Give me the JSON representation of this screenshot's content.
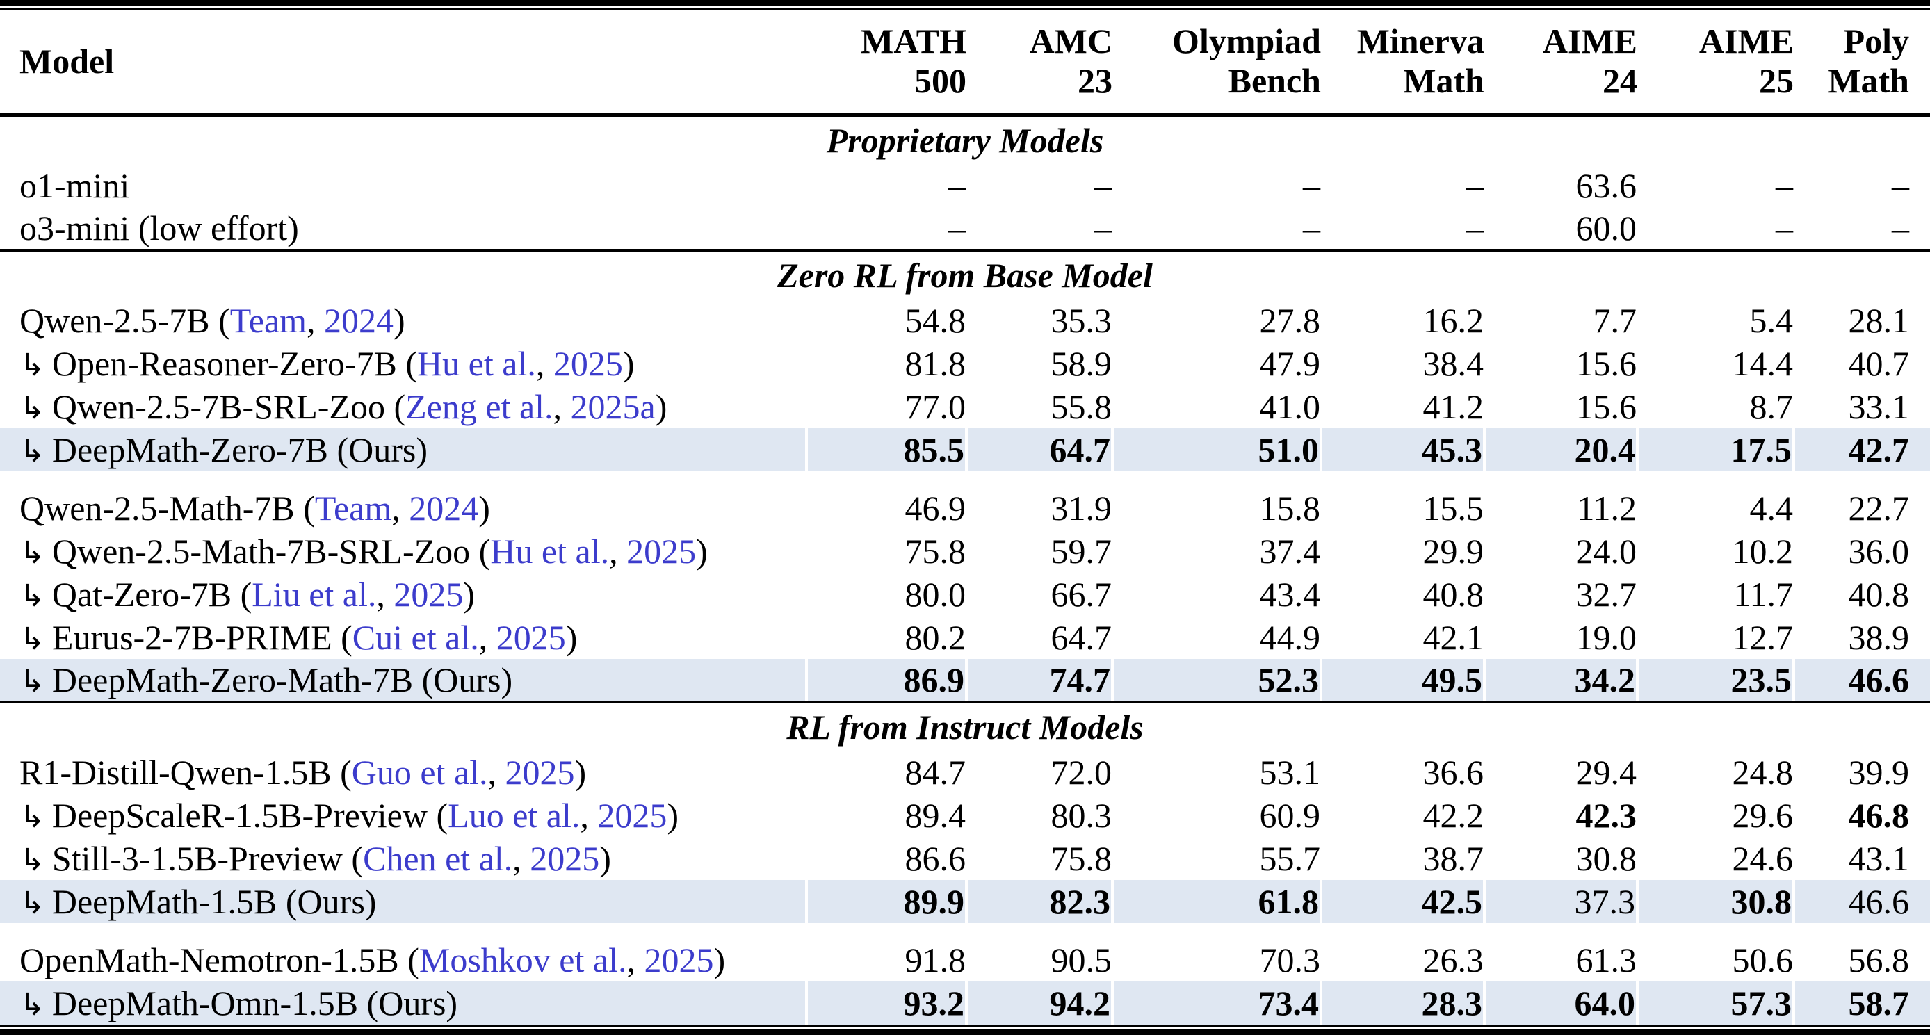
{
  "colors": {
    "highlight_row_bg": "#dfe7f2",
    "citation_link": "#3c3ccc"
  },
  "table": {
    "indent_arrow": "↳",
    "columns": [
      {
        "title": "Model"
      },
      {
        "line1": "MATH",
        "line2": "500"
      },
      {
        "line1": "AMC",
        "line2": "23"
      },
      {
        "line1": "Olympiad",
        "line2": "Bench"
      },
      {
        "line1": "Minerva",
        "line2": "Math"
      },
      {
        "line1": "AIME",
        "line2": "24"
      },
      {
        "line1": "AIME",
        "line2": "25"
      },
      {
        "line1": "Poly",
        "line2": "Math"
      }
    ],
    "sections": [
      {
        "title": "Proprietary Models",
        "groups": [
          {
            "rows": [
              {
                "arrow": false,
                "name": "o1-mini",
                "cite": null,
                "highlight": false,
                "values": [
                  "–",
                  "–",
                  "–",
                  "–",
                  "63.6",
                  "–",
                  "–"
                ],
                "bold": [
                  0,
                  0,
                  0,
                  0,
                  0,
                  0,
                  0
                ]
              },
              {
                "arrow": false,
                "name": "o3-mini (low effort)",
                "cite": null,
                "highlight": false,
                "values": [
                  "–",
                  "–",
                  "–",
                  "–",
                  "60.0",
                  "–",
                  "–"
                ],
                "bold": [
                  0,
                  0,
                  0,
                  0,
                  0,
                  0,
                  0
                ]
              }
            ]
          }
        ]
      },
      {
        "title": "Zero RL from Base Model",
        "groups": [
          {
            "rows": [
              {
                "arrow": false,
                "name": "Qwen-2.5-7B",
                "cite": {
                  "authors": "Team",
                  "year": "2024"
                },
                "highlight": false,
                "values": [
                  "54.8",
                  "35.3",
                  "27.8",
                  "16.2",
                  "7.7",
                  "5.4",
                  "28.1"
                ],
                "bold": [
                  0,
                  0,
                  0,
                  0,
                  0,
                  0,
                  0
                ]
              },
              {
                "arrow": true,
                "name": "Open-Reasoner-Zero-7B",
                "cite": {
                  "authors": "Hu et al.",
                  "year": "2025"
                },
                "highlight": false,
                "values": [
                  "81.8",
                  "58.9",
                  "47.9",
                  "38.4",
                  "15.6",
                  "14.4",
                  "40.7"
                ],
                "bold": [
                  0,
                  0,
                  0,
                  0,
                  0,
                  0,
                  0
                ]
              },
              {
                "arrow": true,
                "name": "Qwen-2.5-7B-SRL-Zoo",
                "cite": {
                  "authors": "Zeng et al.",
                  "year": "2025a"
                },
                "highlight": false,
                "values": [
                  "77.0",
                  "55.8",
                  "41.0",
                  "41.2",
                  "15.6",
                  "8.7",
                  "33.1"
                ],
                "bold": [
                  0,
                  0,
                  0,
                  0,
                  0,
                  0,
                  0
                ]
              },
              {
                "arrow": true,
                "name": "DeepMath-Zero-7B (Ours)",
                "cite": null,
                "highlight": true,
                "values": [
                  "85.5",
                  "64.7",
                  "51.0",
                  "45.3",
                  "20.4",
                  "17.5",
                  "42.7"
                ],
                "bold": [
                  1,
                  1,
                  1,
                  1,
                  1,
                  1,
                  1
                ]
              }
            ]
          },
          {
            "rows": [
              {
                "arrow": false,
                "name": "Qwen-2.5-Math-7B",
                "cite": {
                  "authors": "Team",
                  "year": "2024"
                },
                "highlight": false,
                "values": [
                  "46.9",
                  "31.9",
                  "15.8",
                  "15.5",
                  "11.2",
                  "4.4",
                  "22.7"
                ],
                "bold": [
                  0,
                  0,
                  0,
                  0,
                  0,
                  0,
                  0
                ]
              },
              {
                "arrow": true,
                "name": "Qwen-2.5-Math-7B-SRL-Zoo",
                "cite": {
                  "authors": "Hu et al.",
                  "year": "2025"
                },
                "highlight": false,
                "values": [
                  "75.8",
                  "59.7",
                  "37.4",
                  "29.9",
                  "24.0",
                  "10.2",
                  "36.0"
                ],
                "bold": [
                  0,
                  0,
                  0,
                  0,
                  0,
                  0,
                  0
                ]
              },
              {
                "arrow": true,
                "name": "Qat-Zero-7B",
                "cite": {
                  "authors": "Liu et al.",
                  "year": "2025"
                },
                "highlight": false,
                "values": [
                  "80.0",
                  "66.7",
                  "43.4",
                  "40.8",
                  "32.7",
                  "11.7",
                  "40.8"
                ],
                "bold": [
                  0,
                  0,
                  0,
                  0,
                  0,
                  0,
                  0
                ]
              },
              {
                "arrow": true,
                "name": "Eurus-2-7B-PRIME",
                "cite": {
                  "authors": "Cui et al.",
                  "year": "2025"
                },
                "highlight": false,
                "values": [
                  "80.2",
                  "64.7",
                  "44.9",
                  "42.1",
                  "19.0",
                  "12.7",
                  "38.9"
                ],
                "bold": [
                  0,
                  0,
                  0,
                  0,
                  0,
                  0,
                  0
                ]
              },
              {
                "arrow": true,
                "name": "DeepMath-Zero-Math-7B (Ours)",
                "cite": null,
                "highlight": true,
                "values": [
                  "86.9",
                  "74.7",
                  "52.3",
                  "49.5",
                  "34.2",
                  "23.5",
                  "46.6"
                ],
                "bold": [
                  1,
                  1,
                  1,
                  1,
                  1,
                  1,
                  1
                ]
              }
            ]
          }
        ]
      },
      {
        "title": "RL from Instruct Models",
        "groups": [
          {
            "rows": [
              {
                "arrow": false,
                "name": "R1-Distill-Qwen-1.5B",
                "cite": {
                  "authors": "Guo et al.",
                  "year": "2025"
                },
                "highlight": false,
                "values": [
                  "84.7",
                  "72.0",
                  "53.1",
                  "36.6",
                  "29.4",
                  "24.8",
                  "39.9"
                ],
                "bold": [
                  0,
                  0,
                  0,
                  0,
                  0,
                  0,
                  0
                ]
              },
              {
                "arrow": true,
                "name": "DeepScaleR-1.5B-Preview",
                "cite": {
                  "authors": "Luo et al.",
                  "year": "2025"
                },
                "highlight": false,
                "values": [
                  "89.4",
                  "80.3",
                  "60.9",
                  "42.2",
                  "42.3",
                  "29.6",
                  "46.8"
                ],
                "bold": [
                  0,
                  0,
                  0,
                  0,
                  1,
                  0,
                  1
                ]
              },
              {
                "arrow": true,
                "name": "Still-3-1.5B-Preview",
                "cite": {
                  "authors": "Chen et al.",
                  "year": "2025"
                },
                "highlight": false,
                "values": [
                  "86.6",
                  "75.8",
                  "55.7",
                  "38.7",
                  "30.8",
                  "24.6",
                  "43.1"
                ],
                "bold": [
                  0,
                  0,
                  0,
                  0,
                  0,
                  0,
                  0
                ]
              },
              {
                "arrow": true,
                "name": "DeepMath-1.5B (Ours)",
                "cite": null,
                "highlight": true,
                "values": [
                  "89.9",
                  "82.3",
                  "61.8",
                  "42.5",
                  "37.3",
                  "30.8",
                  "46.6"
                ],
                "bold": [
                  1,
                  1,
                  1,
                  1,
                  0,
                  1,
                  0
                ]
              }
            ]
          },
          {
            "rows": [
              {
                "arrow": false,
                "name": "OpenMath-Nemotron-1.5B",
                "cite": {
                  "authors": "Moshkov et al.",
                  "year": "2025"
                },
                "highlight": false,
                "values": [
                  "91.8",
                  "90.5",
                  "70.3",
                  "26.3",
                  "61.3",
                  "50.6",
                  "56.8"
                ],
                "bold": [
                  0,
                  0,
                  0,
                  0,
                  0,
                  0,
                  0
                ]
              },
              {
                "arrow": true,
                "name": "DeepMath-Omn-1.5B (Ours)",
                "cite": null,
                "highlight": true,
                "values": [
                  "93.2",
                  "94.2",
                  "73.4",
                  "28.3",
                  "64.0",
                  "57.3",
                  "58.7"
                ],
                "bold": [
                  1,
                  1,
                  1,
                  1,
                  1,
                  1,
                  1
                ]
              }
            ]
          }
        ]
      }
    ]
  }
}
